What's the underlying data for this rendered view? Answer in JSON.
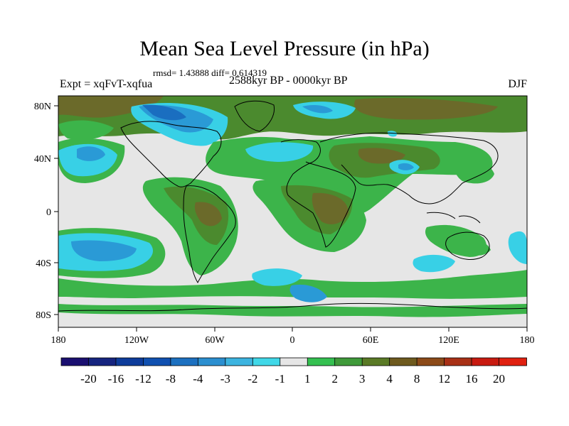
{
  "title": "Mean Sea Level Pressure (in hPa)",
  "stats_text": "rmsd= 1.43888 diff= 0.614319",
  "experiment_label": "Expt = xqFvT-xqfua",
  "time_label": "2588kyr BP - 0000kyr BP",
  "season_label": "DJF",
  "map": {
    "lon_ticks": [
      "180",
      "120W",
      "60W",
      "0",
      "60E",
      "120E",
      "180"
    ],
    "lat_ticks": [
      "80N",
      "40N",
      "0",
      "40S",
      "80S"
    ]
  },
  "colorbar": {
    "levels": [
      "-20",
      "-16",
      "-12",
      "-8",
      "-4",
      "-3",
      "-2",
      "-1",
      "1",
      "2",
      "3",
      "4",
      "8",
      "12",
      "16",
      "20"
    ],
    "colors": [
      "#1a0f70",
      "#16247f",
      "#0e3c9b",
      "#1050b0",
      "#1c70c0",
      "#2b8fd0",
      "#3cb4e0",
      "#40d8e8",
      "#e6e6e6",
      "#34c050",
      "#3f9a3a",
      "#5a7a26",
      "#6e5a1e",
      "#8c4a18",
      "#a83016",
      "#c81a10",
      "#e02010"
    ]
  },
  "colors": {
    "land_green": "#3cb44a",
    "dark_green": "#4b8a2e",
    "olive": "#6b6a2a",
    "brown": "#7a5a2a",
    "cyan": "#38d0e6",
    "blue": "#2a9ad6",
    "deep_blue": "#1a6ec0",
    "neutral": "#e6e6e6"
  }
}
